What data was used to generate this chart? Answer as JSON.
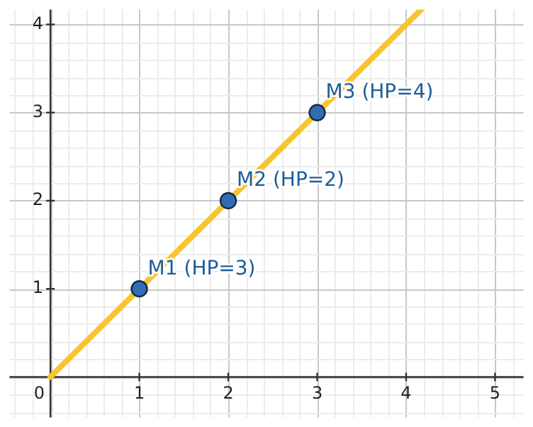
{
  "chart_data": {
    "type": "line",
    "xlim": [
      -0.46,
      5.32
    ],
    "ylim": [
      -0.46,
      4.17
    ],
    "xticks": [
      0,
      1,
      2,
      3,
      4,
      5
    ],
    "yticks": [
      1,
      2,
      3,
      4
    ],
    "grid": true,
    "legend": false,
    "series": [
      {
        "type": "line",
        "x": [
          0,
          4.17
        ],
        "values": [
          0,
          4.17
        ],
        "color": "#f7c52f",
        "marker": "none"
      },
      {
        "type": "scatter",
        "x": [
          1,
          2,
          3
        ],
        "values": [
          1,
          2,
          3
        ],
        "color": "#2f6db5",
        "marker": "circle"
      }
    ],
    "annotations": [
      {
        "text": "M1 (HP=3)",
        "x": 1,
        "y": 1
      },
      {
        "text": "M2 (HP=2)",
        "x": 2,
        "y": 2
      },
      {
        "text": "M3 (HP=4)",
        "x": 3,
        "y": 3
      }
    ]
  }
}
